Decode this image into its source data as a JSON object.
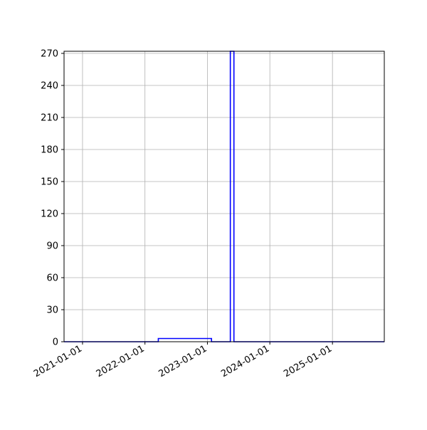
{
  "chart_data": {
    "type": "line",
    "title": "",
    "xlabel": "",
    "ylabel": "",
    "x_type": "date",
    "xlim": [
      "2020-09-15",
      "2025-10-31"
    ],
    "ylim": [
      0,
      272
    ],
    "x_ticks": [
      "2021-01-01",
      "2022-01-01",
      "2023-01-01",
      "2024-01-01",
      "2025-01-01"
    ],
    "y_ticks": [
      0,
      30,
      60,
      90,
      120,
      150,
      180,
      210,
      240,
      270
    ],
    "grid": true,
    "legend": "none",
    "series": [
      {
        "color": "#0000ff",
        "x": [
          "2020-09-15",
          "2022-03-20",
          "2022-03-20",
          "2023-01-25",
          "2023-01-25",
          "2023-05-15",
          "2023-05-15",
          "2023-06-05",
          "2023-06-05",
          "2025-10-31"
        ],
        "y": [
          0,
          0,
          3,
          3,
          0,
          0,
          272,
          272,
          0,
          0
        ]
      }
    ]
  }
}
